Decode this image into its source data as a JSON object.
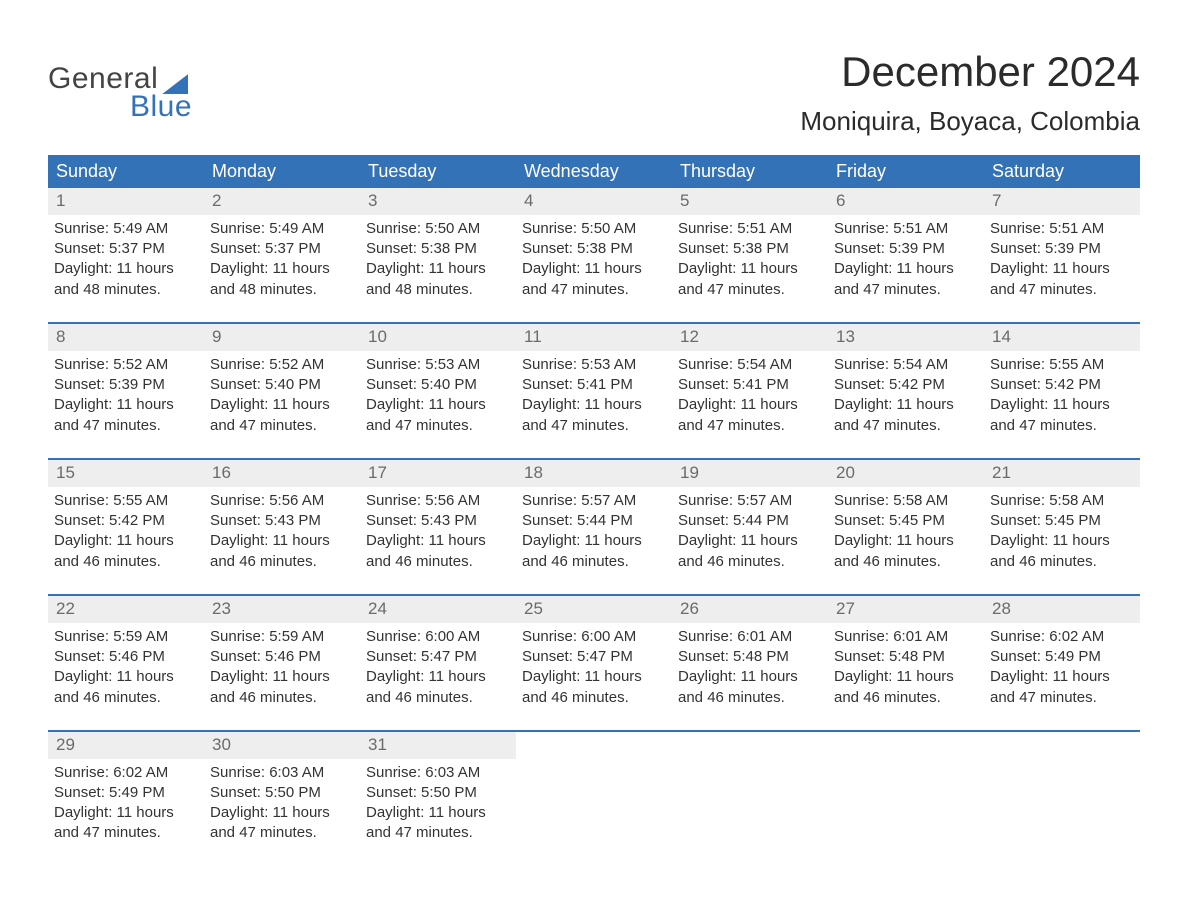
{
  "logo": {
    "line1": "General",
    "line2": "Blue"
  },
  "title": "December 2024",
  "location": "Moniquira, Boyaca, Colombia",
  "colors": {
    "brand_blue": "#3472b8",
    "header_bg": "#3472b8",
    "header_text": "#ffffff",
    "daynum_bg": "#eeeeee",
    "daynum_text": "#6b6b6b",
    "body_text": "#333333",
    "background": "#ffffff"
  },
  "typography": {
    "title_fontsize": 42,
    "location_fontsize": 26,
    "dayheader_fontsize": 18,
    "daynum_fontsize": 17,
    "cell_fontsize": 15,
    "logo_fontsize": 30
  },
  "layout": {
    "columns": 7,
    "week_border_top": "2px solid #3472b8"
  },
  "day_headers": [
    "Sunday",
    "Monday",
    "Tuesday",
    "Wednesday",
    "Thursday",
    "Friday",
    "Saturday"
  ],
  "labels": {
    "sunrise": "Sunrise:",
    "sunset": "Sunset:",
    "daylight": "Daylight:",
    "hours_word": "hours",
    "and_word": "and",
    "minutes_suffix": "minutes."
  },
  "weeks": [
    [
      {
        "day": 1,
        "sunrise": "5:49 AM",
        "sunset": "5:37 PM",
        "daylight_hours": 11,
        "daylight_minutes": 48
      },
      {
        "day": 2,
        "sunrise": "5:49 AM",
        "sunset": "5:37 PM",
        "daylight_hours": 11,
        "daylight_minutes": 48
      },
      {
        "day": 3,
        "sunrise": "5:50 AM",
        "sunset": "5:38 PM",
        "daylight_hours": 11,
        "daylight_minutes": 48
      },
      {
        "day": 4,
        "sunrise": "5:50 AM",
        "sunset": "5:38 PM",
        "daylight_hours": 11,
        "daylight_minutes": 47
      },
      {
        "day": 5,
        "sunrise": "5:51 AM",
        "sunset": "5:38 PM",
        "daylight_hours": 11,
        "daylight_minutes": 47
      },
      {
        "day": 6,
        "sunrise": "5:51 AM",
        "sunset": "5:39 PM",
        "daylight_hours": 11,
        "daylight_minutes": 47
      },
      {
        "day": 7,
        "sunrise": "5:51 AM",
        "sunset": "5:39 PM",
        "daylight_hours": 11,
        "daylight_minutes": 47
      }
    ],
    [
      {
        "day": 8,
        "sunrise": "5:52 AM",
        "sunset": "5:39 PM",
        "daylight_hours": 11,
        "daylight_minutes": 47
      },
      {
        "day": 9,
        "sunrise": "5:52 AM",
        "sunset": "5:40 PM",
        "daylight_hours": 11,
        "daylight_minutes": 47
      },
      {
        "day": 10,
        "sunrise": "5:53 AM",
        "sunset": "5:40 PM",
        "daylight_hours": 11,
        "daylight_minutes": 47
      },
      {
        "day": 11,
        "sunrise": "5:53 AM",
        "sunset": "5:41 PM",
        "daylight_hours": 11,
        "daylight_minutes": 47
      },
      {
        "day": 12,
        "sunrise": "5:54 AM",
        "sunset": "5:41 PM",
        "daylight_hours": 11,
        "daylight_minutes": 47
      },
      {
        "day": 13,
        "sunrise": "5:54 AM",
        "sunset": "5:42 PM",
        "daylight_hours": 11,
        "daylight_minutes": 47
      },
      {
        "day": 14,
        "sunrise": "5:55 AM",
        "sunset": "5:42 PM",
        "daylight_hours": 11,
        "daylight_minutes": 47
      }
    ],
    [
      {
        "day": 15,
        "sunrise": "5:55 AM",
        "sunset": "5:42 PM",
        "daylight_hours": 11,
        "daylight_minutes": 46
      },
      {
        "day": 16,
        "sunrise": "5:56 AM",
        "sunset": "5:43 PM",
        "daylight_hours": 11,
        "daylight_minutes": 46
      },
      {
        "day": 17,
        "sunrise": "5:56 AM",
        "sunset": "5:43 PM",
        "daylight_hours": 11,
        "daylight_minutes": 46
      },
      {
        "day": 18,
        "sunrise": "5:57 AM",
        "sunset": "5:44 PM",
        "daylight_hours": 11,
        "daylight_minutes": 46
      },
      {
        "day": 19,
        "sunrise": "5:57 AM",
        "sunset": "5:44 PM",
        "daylight_hours": 11,
        "daylight_minutes": 46
      },
      {
        "day": 20,
        "sunrise": "5:58 AM",
        "sunset": "5:45 PM",
        "daylight_hours": 11,
        "daylight_minutes": 46
      },
      {
        "day": 21,
        "sunrise": "5:58 AM",
        "sunset": "5:45 PM",
        "daylight_hours": 11,
        "daylight_minutes": 46
      }
    ],
    [
      {
        "day": 22,
        "sunrise": "5:59 AM",
        "sunset": "5:46 PM",
        "daylight_hours": 11,
        "daylight_minutes": 46
      },
      {
        "day": 23,
        "sunrise": "5:59 AM",
        "sunset": "5:46 PM",
        "daylight_hours": 11,
        "daylight_minutes": 46
      },
      {
        "day": 24,
        "sunrise": "6:00 AM",
        "sunset": "5:47 PM",
        "daylight_hours": 11,
        "daylight_minutes": 46
      },
      {
        "day": 25,
        "sunrise": "6:00 AM",
        "sunset": "5:47 PM",
        "daylight_hours": 11,
        "daylight_minutes": 46
      },
      {
        "day": 26,
        "sunrise": "6:01 AM",
        "sunset": "5:48 PM",
        "daylight_hours": 11,
        "daylight_minutes": 46
      },
      {
        "day": 27,
        "sunrise": "6:01 AM",
        "sunset": "5:48 PM",
        "daylight_hours": 11,
        "daylight_minutes": 46
      },
      {
        "day": 28,
        "sunrise": "6:02 AM",
        "sunset": "5:49 PM",
        "daylight_hours": 11,
        "daylight_minutes": 47
      }
    ],
    [
      {
        "day": 29,
        "sunrise": "6:02 AM",
        "sunset": "5:49 PM",
        "daylight_hours": 11,
        "daylight_minutes": 47
      },
      {
        "day": 30,
        "sunrise": "6:03 AM",
        "sunset": "5:50 PM",
        "daylight_hours": 11,
        "daylight_minutes": 47
      },
      {
        "day": 31,
        "sunrise": "6:03 AM",
        "sunset": "5:50 PM",
        "daylight_hours": 11,
        "daylight_minutes": 47
      },
      null,
      null,
      null,
      null
    ]
  ]
}
